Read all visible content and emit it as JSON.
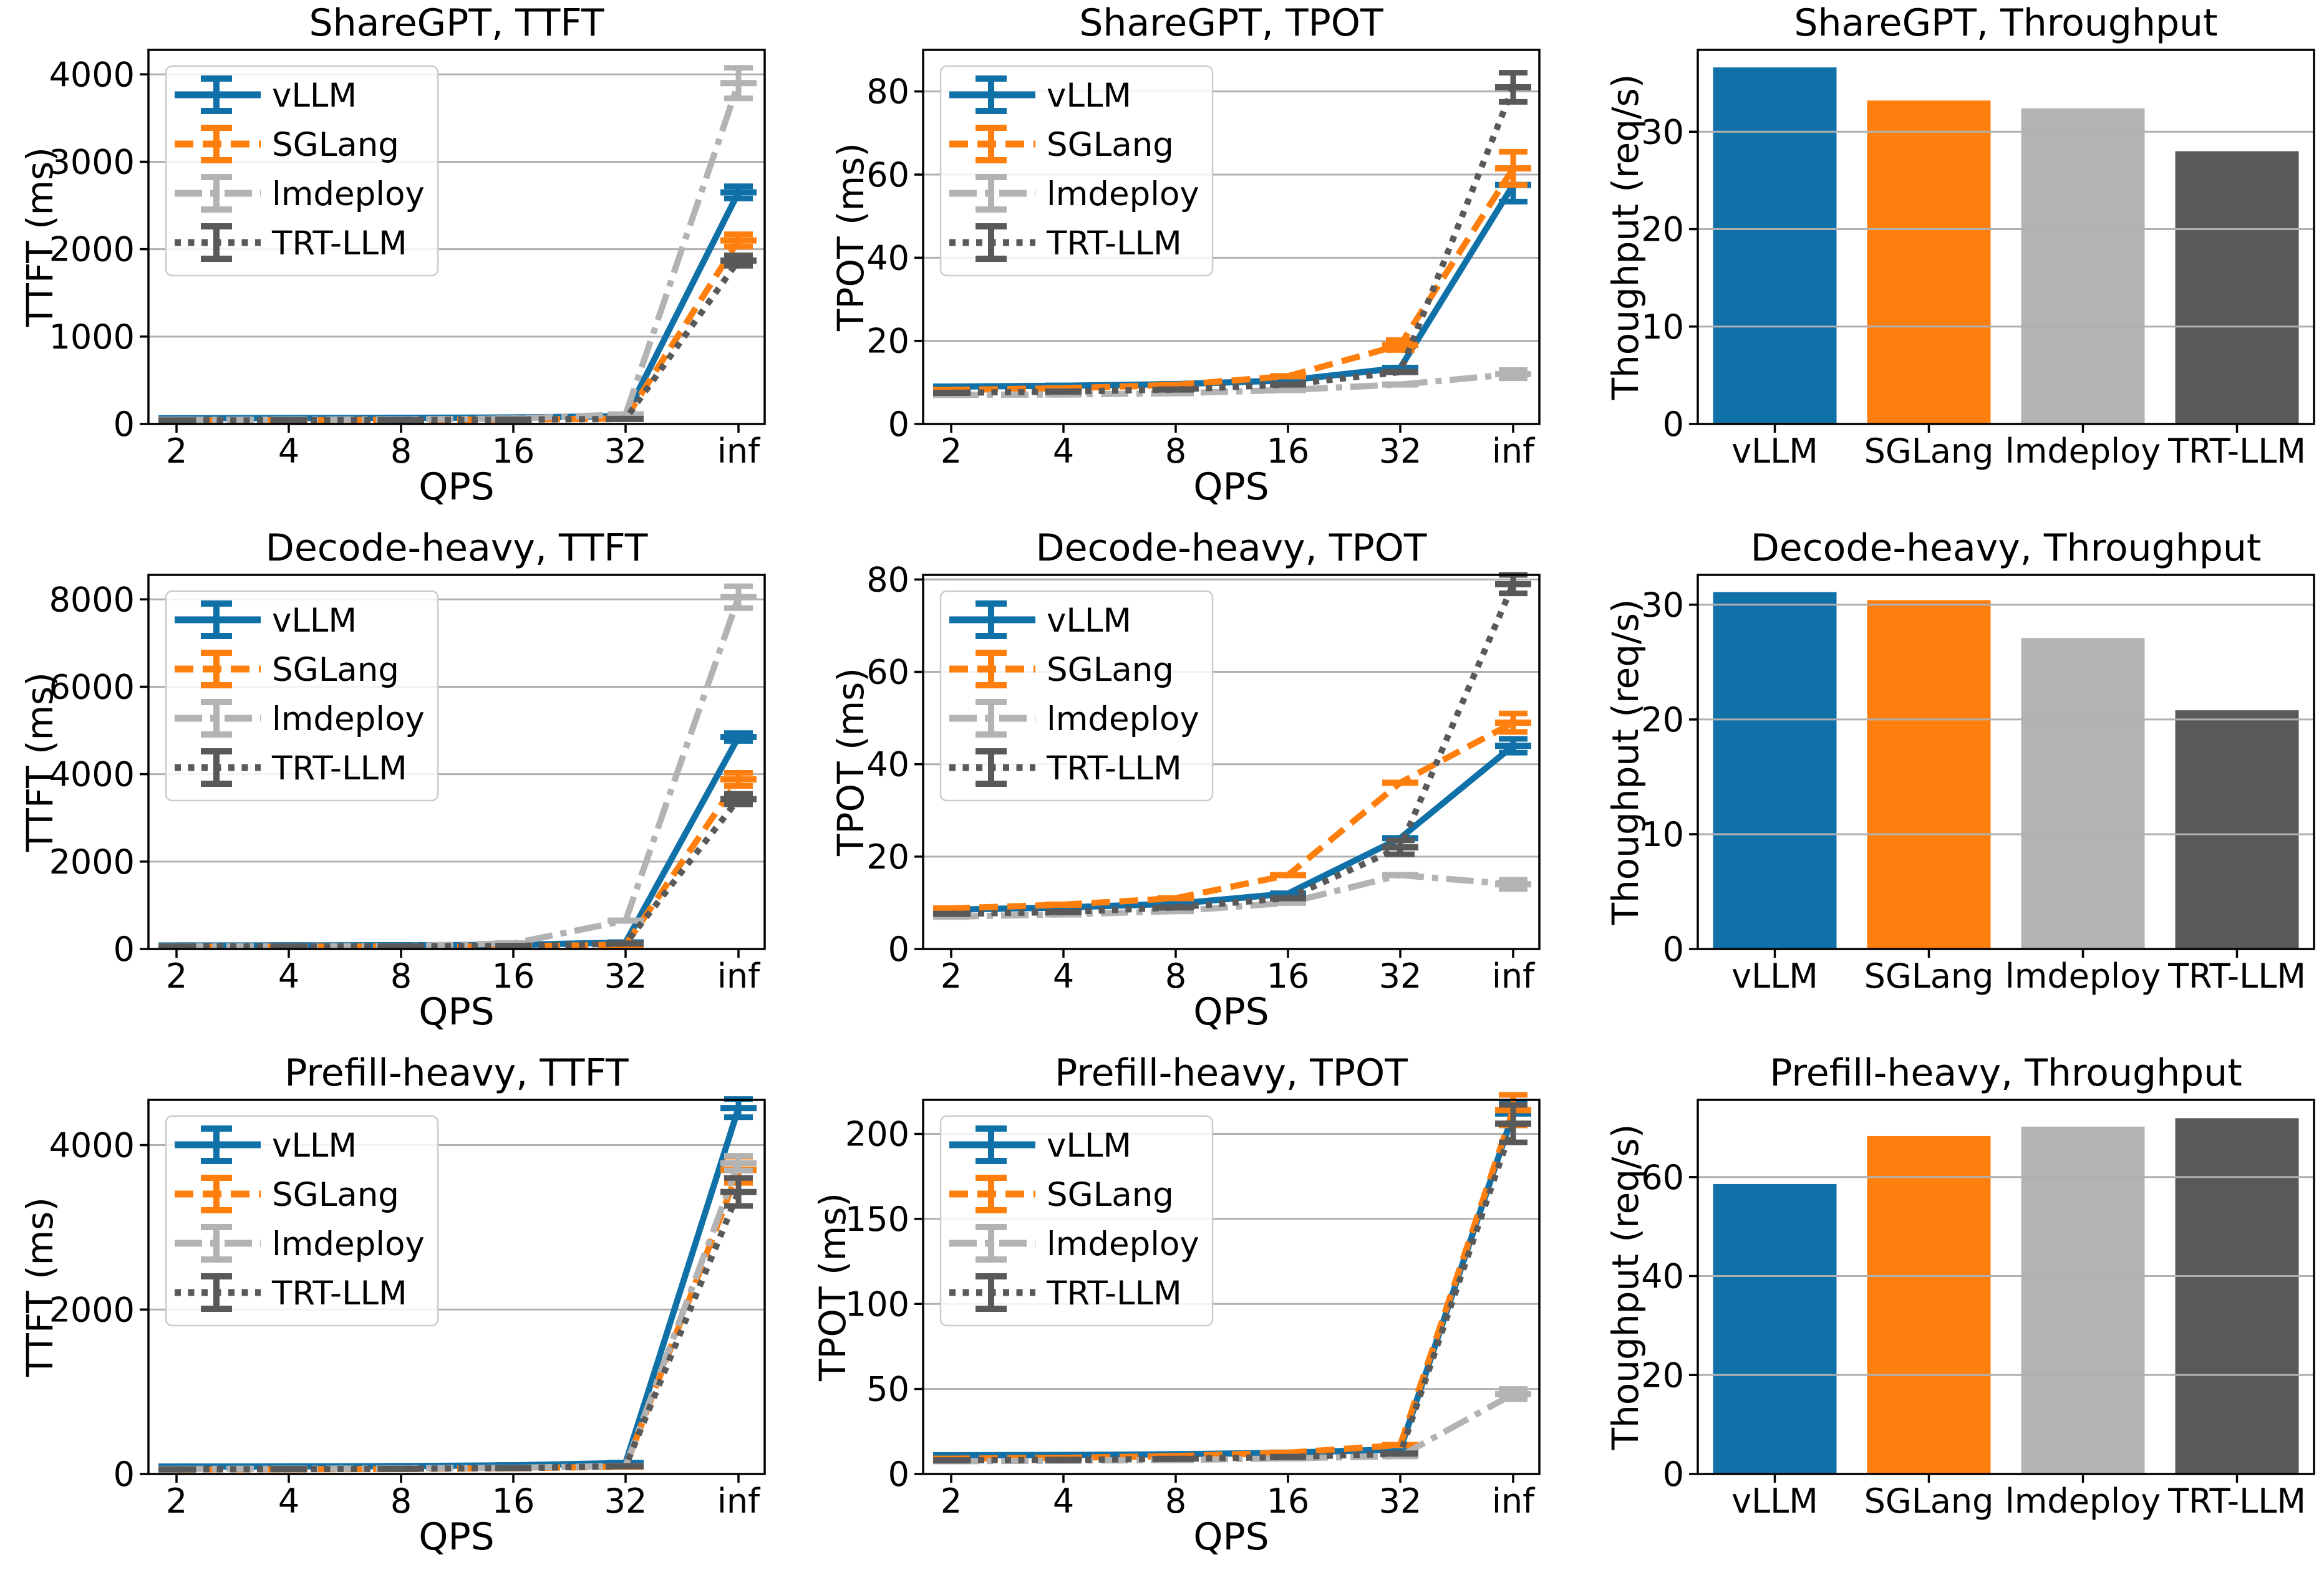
{
  "figure": {
    "background": "#ffffff"
  },
  "colors": {
    "vLLM": "#1070a8",
    "SGLang": "#ff7f0e",
    "lmdeploy": "#b3b3b3",
    "TRT-LLM": "#595959",
    "grid": "#b0b0b0",
    "axis": "#000000",
    "legend_border": "#cccccc"
  },
  "series_names": [
    "vLLM",
    "SGLang",
    "lmdeploy",
    "TRT-LLM"
  ],
  "chart_data": [
    {
      "type": "line",
      "title": "ShareGPT, TTFT",
      "ylabel": "TTFT (ms)",
      "xlabel": "QPS",
      "x_ticklabels": [
        "2",
        "4",
        "8",
        "16",
        "32",
        "inf"
      ],
      "yticks": [
        0,
        1000,
        2000,
        3000,
        4000
      ],
      "ylim": [
        0,
        4280
      ],
      "legend": true,
      "series": [
        {
          "name": "vLLM",
          "dash": "solid",
          "values": [
            65,
            68,
            70,
            75,
            90,
            2650
          ],
          "err": [
            0,
            0,
            0,
            0,
            0,
            70
          ]
        },
        {
          "name": "SGLang",
          "dash": "dashed",
          "values": [
            42,
            44,
            47,
            52,
            62,
            2100
          ],
          "err": [
            0,
            0,
            0,
            0,
            0,
            70
          ]
        },
        {
          "name": "lmdeploy",
          "dash": "dashdot",
          "values": [
            48,
            50,
            53,
            62,
            110,
            3900
          ],
          "err": [
            0,
            0,
            0,
            0,
            0,
            175
          ]
        },
        {
          "name": "TRT-LLM",
          "dash": "dotted",
          "values": [
            40,
            42,
            45,
            50,
            58,
            1870
          ],
          "err": [
            0,
            0,
            0,
            0,
            0,
            60
          ]
        }
      ]
    },
    {
      "type": "line",
      "title": "ShareGPT, TPOT",
      "ylabel": "TPOT (ms)",
      "xlabel": "QPS",
      "x_ticklabels": [
        "2",
        "4",
        "8",
        "16",
        "32",
        "inf"
      ],
      "yticks": [
        0,
        20,
        40,
        60,
        80
      ],
      "ylim": [
        0,
        90
      ],
      "legend": true,
      "series": [
        {
          "name": "vLLM",
          "dash": "solid",
          "values": [
            9.0,
            9.2,
            9.6,
            10.5,
            13.5,
            57.5
          ],
          "err": [
            0,
            0,
            0,
            0,
            0,
            4.0
          ]
        },
        {
          "name": "SGLang",
          "dash": "dashed",
          "values": [
            8.2,
            8.6,
            9.4,
            11.5,
            19.0,
            61.5
          ],
          "err": [
            0,
            0,
            0,
            0,
            1.2,
            4.0
          ]
        },
        {
          "name": "lmdeploy",
          "dash": "dashdot",
          "values": [
            7.0,
            7.1,
            7.4,
            8.2,
            9.5,
            12.0
          ],
          "err": [
            0,
            0,
            0,
            0,
            0,
            1.0
          ]
        },
        {
          "name": "TRT-LLM",
          "dash": "dotted",
          "values": [
            7.5,
            7.8,
            8.3,
            9.5,
            12.5,
            81.0
          ],
          "err": [
            0,
            0,
            0,
            0,
            0,
            3.5
          ]
        }
      ]
    },
    {
      "type": "bar",
      "title": "ShareGPT, Throughput",
      "ylabel": "Thoughput (req/s)",
      "categories": [
        "vLLM",
        "SGLang",
        "lmdeploy",
        "TRT-LLM"
      ],
      "values": [
        36.6,
        33.2,
        32.4,
        28.0
      ],
      "yticks": [
        0,
        10,
        20,
        30
      ],
      "ylim": [
        0,
        38.4
      ]
    },
    {
      "type": "line",
      "title": "Decode-heavy, TTFT",
      "ylabel": "TTFT (ms)",
      "xlabel": "QPS",
      "x_ticklabels": [
        "2",
        "4",
        "8",
        "16",
        "32",
        "inf"
      ],
      "yticks": [
        0,
        2000,
        4000,
        6000,
        8000
      ],
      "ylim": [
        0,
        8560
      ],
      "legend": true,
      "series": [
        {
          "name": "vLLM",
          "dash": "solid",
          "values": [
            80,
            82,
            85,
            92,
            150,
            4850
          ],
          "err": [
            0,
            0,
            0,
            0,
            0,
            90
          ]
        },
        {
          "name": "SGLang",
          "dash": "dashed",
          "values": [
            52,
            54,
            57,
            62,
            95,
            3880
          ],
          "err": [
            0,
            0,
            0,
            0,
            0,
            150
          ]
        },
        {
          "name": "lmdeploy",
          "dash": "dashdot",
          "values": [
            60,
            63,
            66,
            130,
            650,
            8050
          ],
          "err": [
            0,
            0,
            0,
            0,
            0,
            250
          ]
        },
        {
          "name": "TRT-LLM",
          "dash": "dotted",
          "values": [
            56,
            58,
            62,
            70,
            125,
            3430
          ],
          "err": [
            0,
            0,
            0,
            0,
            0,
            120
          ]
        }
      ]
    },
    {
      "type": "line",
      "title": "Decode-heavy, TPOT",
      "ylabel": "TPOT (ms)",
      "xlabel": "QPS",
      "x_ticklabels": [
        "2",
        "4",
        "8",
        "16",
        "32",
        "inf"
      ],
      "yticks": [
        0,
        20,
        40,
        60,
        80
      ],
      "ylim": [
        0,
        81
      ],
      "legend": true,
      "series": [
        {
          "name": "vLLM",
          "dash": "solid",
          "values": [
            8.5,
            9.0,
            9.8,
            12.0,
            24.0,
            44.0
          ],
          "err": [
            0,
            0,
            0,
            0,
            0,
            1.5
          ]
        },
        {
          "name": "SGLang",
          "dash": "dashed",
          "values": [
            8.8,
            9.6,
            11.0,
            16.0,
            36.0,
            49.0
          ],
          "err": [
            0,
            0,
            0,
            0,
            0,
            2.0
          ]
        },
        {
          "name": "lmdeploy",
          "dash": "dashdot",
          "values": [
            7.0,
            7.5,
            8.2,
            10.0,
            16.0,
            14.0
          ],
          "err": [
            0,
            0,
            0,
            0,
            0,
            1.0
          ]
        },
        {
          "name": "TRT-LLM",
          "dash": "dotted",
          "values": [
            7.6,
            8.0,
            9.0,
            11.0,
            22.0,
            79.0
          ],
          "err": [
            0,
            0,
            0,
            0,
            1.5,
            2.0
          ]
        }
      ]
    },
    {
      "type": "bar",
      "title": "Decode-heavy, Throughput",
      "ylabel": "Thoughput (req/s)",
      "categories": [
        "vLLM",
        "SGLang",
        "lmdeploy",
        "TRT-LLM"
      ],
      "values": [
        31.1,
        30.4,
        27.1,
        20.8
      ],
      "yticks": [
        0,
        10,
        20,
        30
      ],
      "ylim": [
        0,
        32.6
      ]
    },
    {
      "type": "line",
      "title": "Prefill-heavy, TTFT",
      "ylabel": "TTFT (ms)",
      "xlabel": "QPS",
      "x_ticklabels": [
        "2",
        "4",
        "8",
        "16",
        "32",
        "inf"
      ],
      "yticks": [
        0,
        2000,
        4000
      ],
      "ylim": [
        0,
        4550
      ],
      "legend": true,
      "series": [
        {
          "name": "vLLM",
          "dash": "solid",
          "values": [
            90,
            92,
            96,
            105,
            135,
            4450
          ],
          "err": [
            0,
            0,
            0,
            0,
            0,
            110
          ]
        },
        {
          "name": "SGLang",
          "dash": "dashed",
          "values": [
            56,
            58,
            62,
            70,
            90,
            3700
          ],
          "err": [
            0,
            0,
            0,
            0,
            0,
            160
          ]
        },
        {
          "name": "lmdeploy",
          "dash": "dashdot",
          "values": [
            62,
            64,
            68,
            76,
            98,
            3780
          ],
          "err": [
            0,
            0,
            0,
            0,
            0,
            90
          ]
        },
        {
          "name": "TRT-LLM",
          "dash": "dotted",
          "values": [
            56,
            59,
            63,
            71,
            95,
            3430
          ],
          "err": [
            0,
            0,
            0,
            0,
            0,
            170
          ]
        }
      ]
    },
    {
      "type": "line",
      "title": "Prefill-heavy, TPOT",
      "ylabel": "TPOT (ms)",
      "xlabel": "QPS",
      "x_ticklabels": [
        "2",
        "4",
        "8",
        "16",
        "32",
        "inf"
      ],
      "yticks": [
        0,
        50,
        100,
        150,
        200
      ],
      "ylim": [
        0,
        220
      ],
      "legend": true,
      "series": [
        {
          "name": "vLLM",
          "dash": "solid",
          "values": [
            11.0,
            11.2,
            11.6,
            12.5,
            14.5,
            212
          ],
          "err": [
            0,
            0,
            0,
            0,
            0,
            7
          ]
        },
        {
          "name": "SGLang",
          "dash": "dashed",
          "values": [
            9.0,
            9.5,
            10.5,
            12.5,
            17.0,
            214
          ],
          "err": [
            0,
            0,
            0,
            0,
            0,
            9
          ]
        },
        {
          "name": "lmdeploy",
          "dash": "dashdot",
          "values": [
            7.5,
            7.8,
            8.2,
            9.2,
            10.5,
            47
          ],
          "err": [
            0,
            0,
            0,
            0,
            0,
            3
          ]
        },
        {
          "name": "TRT-LLM",
          "dash": "dotted",
          "values": [
            8.0,
            8.3,
            8.9,
            10.0,
            12.0,
            206
          ],
          "err": [
            0,
            0,
            0,
            0,
            0,
            11
          ]
        }
      ]
    },
    {
      "type": "bar",
      "title": "Prefill-heavy, Throughput",
      "ylabel": "Thoughput (req/s)",
      "categories": [
        "vLLM",
        "SGLang",
        "lmdeploy",
        "TRT-LLM"
      ],
      "values": [
        58.6,
        68.3,
        70.2,
        71.9
      ],
      "yticks": [
        0,
        20,
        40,
        60
      ],
      "ylim": [
        0,
        75.6
      ]
    }
  ]
}
